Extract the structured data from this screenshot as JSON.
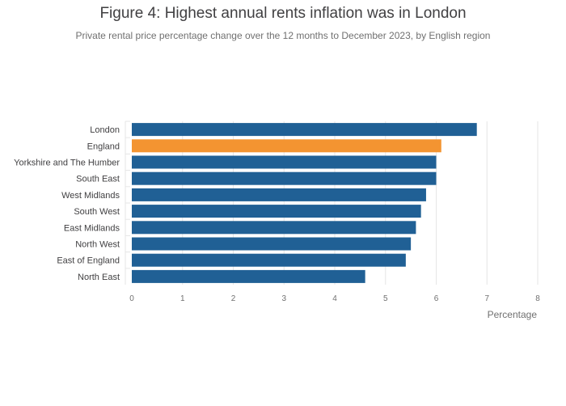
{
  "header": {
    "title": "Figure 4: Highest annual rents inflation was in London",
    "subtitle": "Private rental price percentage change over the 12 months to December 2023, by English region"
  },
  "chart_data": {
    "type": "bar",
    "orientation": "horizontal",
    "title": "Figure 4: Highest annual rents inflation was in London",
    "subtitle": "Private rental price percentage change over the 12 months to December 2023, by English region",
    "categories": [
      "London",
      "England",
      "Yorkshire and The Humber",
      "South East",
      "West Midlands",
      "South West",
      "East Midlands",
      "North West",
      "East of England",
      "North East"
    ],
    "values": [
      6.8,
      6.1,
      6.0,
      6.0,
      5.8,
      5.7,
      5.6,
      5.5,
      5.4,
      4.6
    ],
    "highlight_category": "England",
    "colors": {
      "bar": "#206095",
      "highlight": "#f39431",
      "grid": "#e6e6e6"
    },
    "xlabel": "Percentage",
    "ylabel": "",
    "xlim": [
      0,
      8
    ],
    "xticks": [
      "0",
      "1",
      "2",
      "3",
      "4",
      "5",
      "6",
      "7",
      "8"
    ],
    "grid": true,
    "legend": "none"
  }
}
